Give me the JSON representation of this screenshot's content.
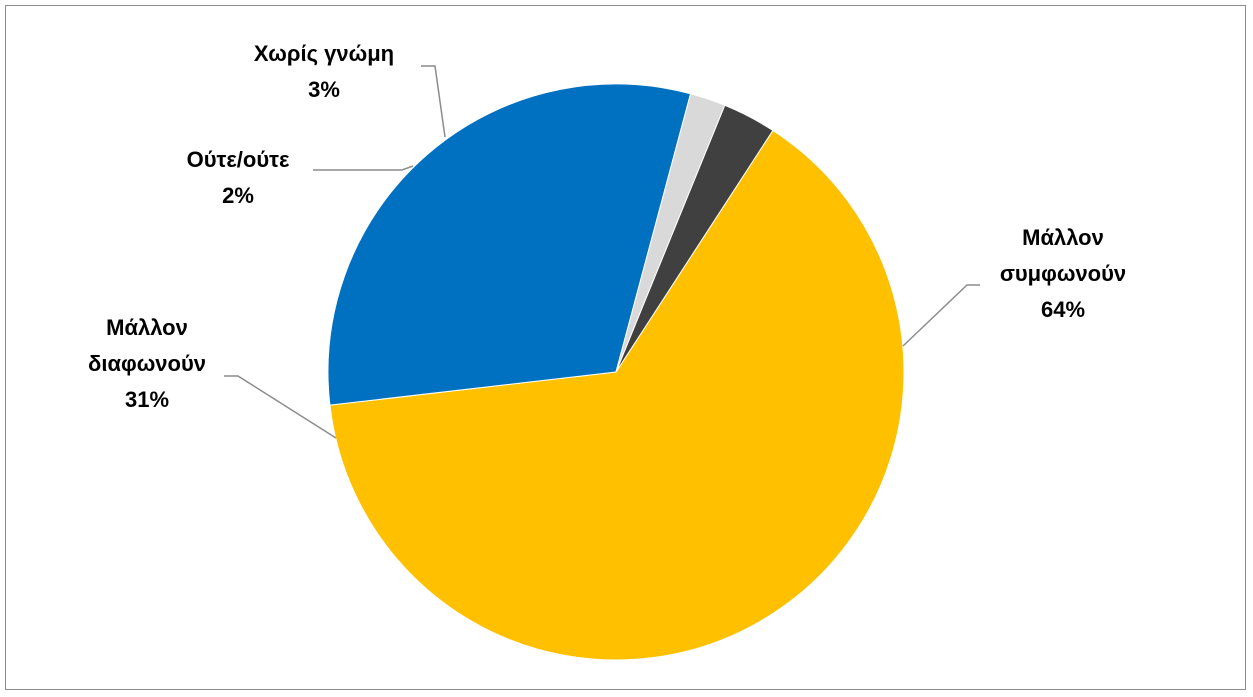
{
  "chart_data": {
    "type": "pie",
    "title": "",
    "slices": [
      {
        "label": "Μάλλον συμφωνούν",
        "value": 64,
        "value_label": "64%",
        "color": "#FFC000"
      },
      {
        "label": "Μάλλον διαφωνούν",
        "value": 31,
        "value_label": "31%",
        "color": "#0070C0"
      },
      {
        "label": "Ούτε/ούτε",
        "value": 2,
        "value_label": "2%",
        "color": "#D9D9D9"
      },
      {
        "label": "Χωρίς γνώμη",
        "value": 3,
        "value_label": "3%",
        "color": "#404040"
      }
    ],
    "legend": "none",
    "data_labels": "outside with leader lines"
  }
}
